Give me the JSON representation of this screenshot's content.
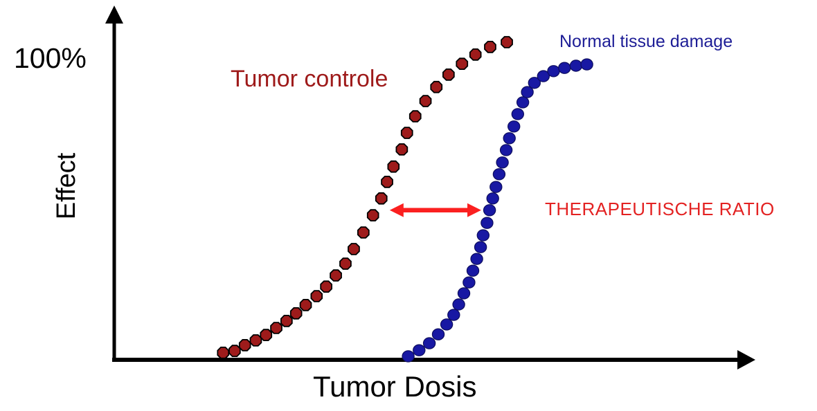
{
  "figure": {
    "y_max_label": "100%",
    "y_axis_title": "Effect",
    "x_axis_title": "Tumor Dosis"
  },
  "chart_data": {
    "type": "scatter",
    "title": "",
    "xlabel": "Tumor Dosis",
    "ylabel": "Effect",
    "xlim": [
      0,
      100
    ],
    "ylim": [
      0,
      105
    ],
    "x_tick_labels": [],
    "y_tick_labels": [
      "100%"
    ],
    "grid": false,
    "legend_position": "inline series labels",
    "axis_color": "#000000",
    "series": [
      {
        "name": "Tumor controle",
        "label_color": "#9e1a1a",
        "marker": "octagon",
        "marker_fill": "#9e1b1b",
        "marker_stroke": "#000000",
        "points": [
          [
            17.0,
            2.2
          ],
          [
            18.8,
            2.8
          ],
          [
            20.4,
            4.6
          ],
          [
            22.1,
            6.1
          ],
          [
            23.7,
            7.8
          ],
          [
            25.3,
            10.0
          ],
          [
            26.9,
            12.2
          ],
          [
            28.4,
            14.6
          ],
          [
            29.9,
            17.2
          ],
          [
            31.6,
            20.0
          ],
          [
            33.1,
            23.0
          ],
          [
            34.6,
            26.5
          ],
          [
            36.1,
            30.2
          ],
          [
            37.4,
            34.8
          ],
          [
            38.9,
            40.0
          ],
          [
            40.4,
            45.4
          ],
          [
            41.7,
            50.7
          ],
          [
            42.6,
            55.9
          ],
          [
            43.6,
            60.7
          ],
          [
            44.9,
            66.1
          ],
          [
            45.7,
            71.3
          ],
          [
            47.0,
            76.5
          ],
          [
            48.6,
            81.3
          ],
          [
            50.3,
            85.7
          ],
          [
            52.2,
            89.6
          ],
          [
            54.3,
            93.0
          ],
          [
            56.4,
            95.9
          ],
          [
            58.7,
            98.3
          ],
          [
            61.3,
            99.8
          ]
        ]
      },
      {
        "name": "Normal tissue damage",
        "label_color": "#1d1d96",
        "marker": "circle",
        "marker_fill": "#1818a3",
        "marker_stroke": "#0d0d5e",
        "points": [
          [
            45.9,
            1.1
          ],
          [
            47.6,
            3.0
          ],
          [
            49.2,
            5.2
          ],
          [
            50.6,
            8.0
          ],
          [
            51.9,
            11.1
          ],
          [
            53.0,
            14.1
          ],
          [
            53.8,
            17.4
          ],
          [
            54.6,
            20.9
          ],
          [
            55.4,
            24.3
          ],
          [
            56.0,
            28.0
          ],
          [
            56.6,
            31.7
          ],
          [
            57.2,
            35.4
          ],
          [
            57.6,
            39.1
          ],
          [
            58.2,
            43.0
          ],
          [
            58.6,
            47.0
          ],
          [
            59.1,
            50.7
          ],
          [
            59.6,
            54.3
          ],
          [
            60.1,
            58.3
          ],
          [
            60.6,
            62.0
          ],
          [
            61.2,
            65.9
          ],
          [
            61.7,
            69.6
          ],
          [
            62.4,
            73.3
          ],
          [
            63.0,
            77.2
          ],
          [
            63.8,
            80.9
          ],
          [
            64.5,
            84.1
          ],
          [
            65.6,
            87.0
          ],
          [
            67.0,
            89.1
          ],
          [
            68.6,
            90.7
          ],
          [
            70.3,
            91.7
          ],
          [
            72.1,
            92.4
          ],
          [
            73.8,
            92.8
          ]
        ]
      }
    ],
    "annotation": {
      "label": "THERAPEUTISCHE RATIO",
      "label_color": "#e32222",
      "arrow_color": "#fb2020",
      "type": "double-headed-arrow",
      "from_dose": 43.0,
      "to_dose": 57.3,
      "at_effect": 47.0
    }
  }
}
